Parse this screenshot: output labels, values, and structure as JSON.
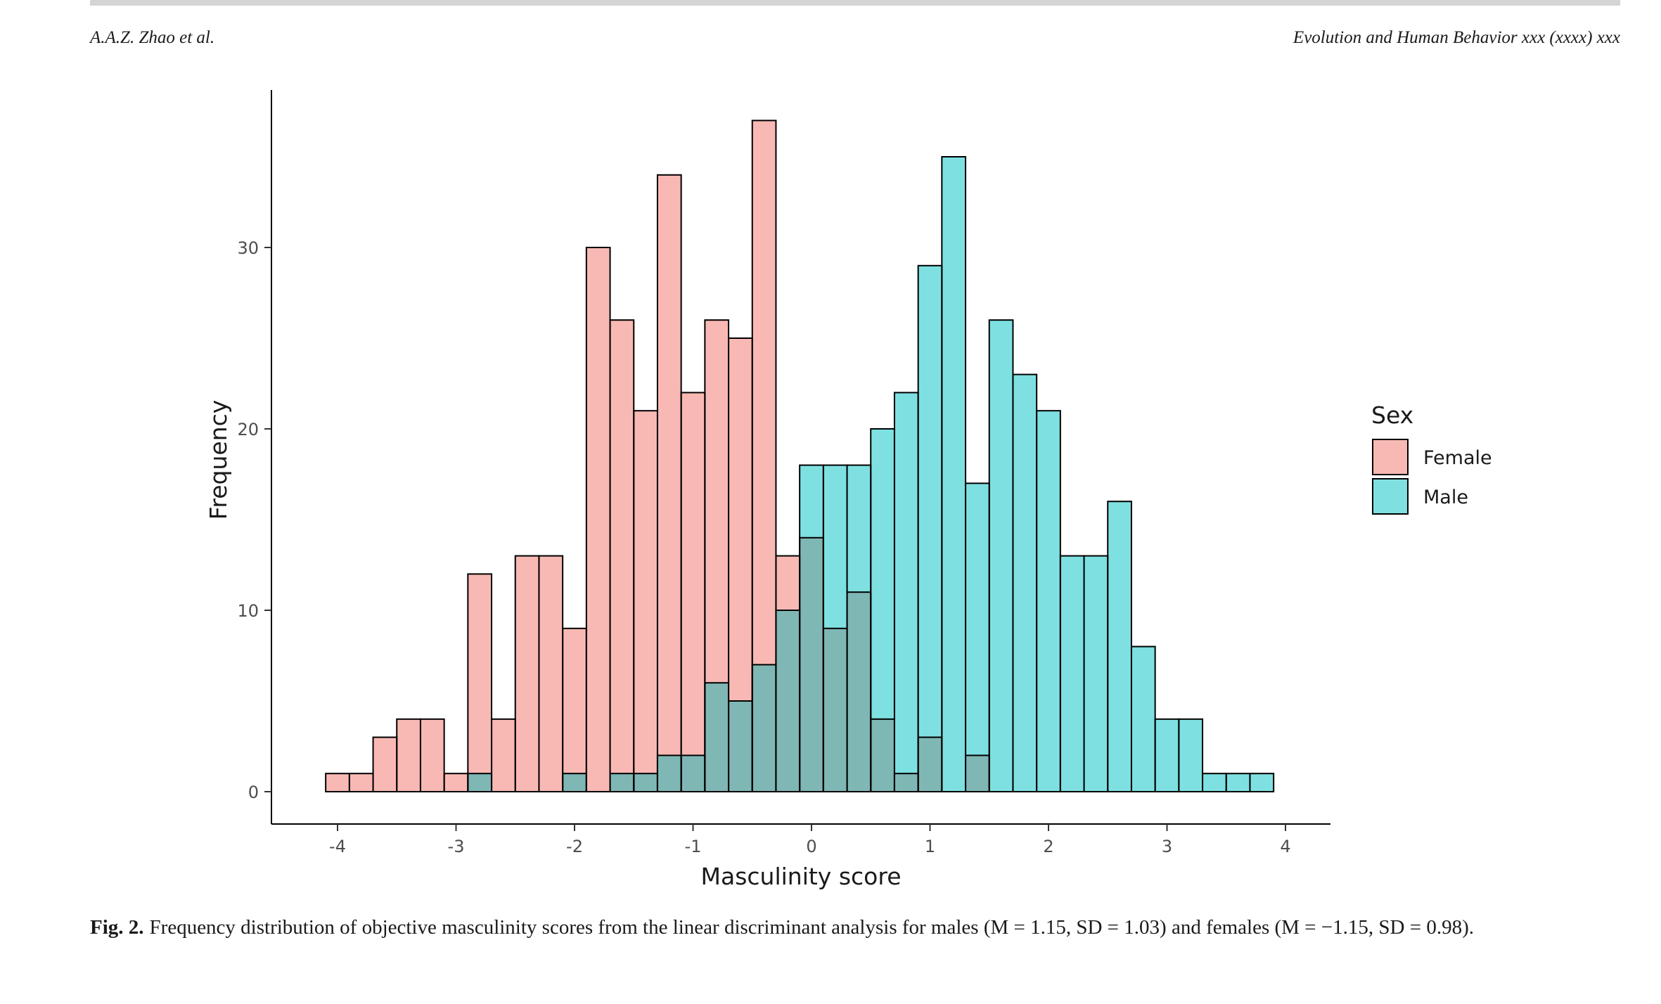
{
  "header": {
    "left": "A.A.Z. Zhao et al.",
    "right": "Evolution and Human Behavior xxx (xxxx) xxx"
  },
  "caption": {
    "label": "Fig. 2.",
    "text": "Frequency distribution of objective masculinity scores from the linear discriminant analysis for males (M = 1.15, SD = 1.03) and females (M = −1.15, SD = 0.98)."
  },
  "chart_data": {
    "type": "bar",
    "subtype": "overlaid histogram",
    "xlabel": "Masculinity score",
    "ylabel": "Frequency",
    "xlim": [
      -4.4,
      4.4
    ],
    "ylim": [
      0,
      37
    ],
    "x_ticks": [
      "-4",
      "-3",
      "-2",
      "-1",
      "0",
      "1",
      "2",
      "3",
      "4"
    ],
    "y_ticks": [
      "0",
      "10",
      "20",
      "30"
    ],
    "bin_width": 0.2,
    "grid": false,
    "legend": {
      "title": "Sex",
      "position": "right",
      "entries": [
        "Female",
        "Male"
      ]
    },
    "colors": {
      "Female": "#f8b9b4",
      "Male": "#7fe0e1",
      "overlap": "#7fb7b5",
      "outline": "#000000"
    },
    "bins": [
      -4.0,
      -3.8,
      -3.6,
      -3.4,
      -3.2,
      -3.0,
      -2.8,
      -2.6,
      -2.4,
      -2.2,
      -2.0,
      -1.8,
      -1.6,
      -1.4,
      -1.2,
      -1.0,
      -0.8,
      -0.6,
      -0.4,
      -0.2,
      0.0,
      0.2,
      0.4,
      0.6,
      0.8,
      1.0,
      1.2,
      1.4,
      1.6,
      1.8,
      2.0,
      2.2,
      2.4,
      2.6,
      2.8,
      3.0,
      3.2,
      3.4,
      3.6,
      3.8
    ],
    "series": [
      {
        "name": "Female",
        "values": [
          1,
          1,
          3,
          4,
          4,
          1,
          12,
          4,
          13,
          13,
          9,
          30,
          26,
          21,
          34,
          22,
          26,
          25,
          37,
          13,
          14,
          9,
          11,
          4,
          1,
          3,
          0,
          2,
          0,
          0,
          0,
          0,
          0,
          0,
          0,
          0,
          0,
          0,
          0,
          0
        ]
      },
      {
        "name": "Male",
        "values": [
          0,
          0,
          0,
          0,
          0,
          0,
          1,
          0,
          0,
          0,
          1,
          0,
          1,
          1,
          2,
          2,
          6,
          5,
          7,
          10,
          18,
          18,
          18,
          20,
          22,
          29,
          35,
          17,
          26,
          23,
          21,
          13,
          13,
          16,
          8,
          4,
          4,
          1,
          1,
          1
        ]
      }
    ]
  }
}
